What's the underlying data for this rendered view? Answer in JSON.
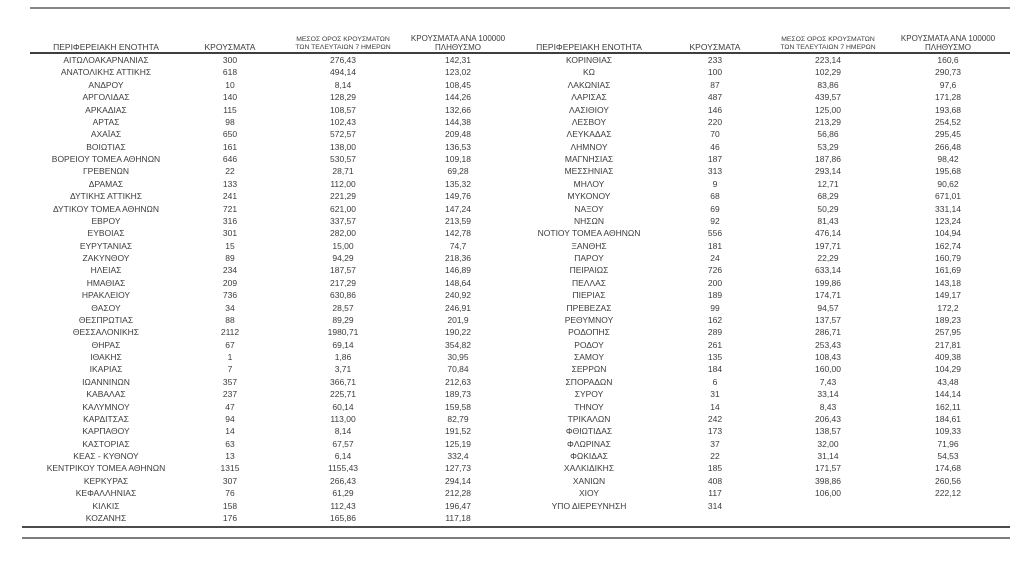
{
  "page": {
    "background_color": "#ffffff",
    "text_color": "#3c3c3c",
    "top_rule_color": "#868686",
    "header_rule_color": "#3f3f3f",
    "bottom_rule_color": "#7d7d7d"
  },
  "columns": {
    "region": "ΠΕΡΙΦΕΡΕΙΑΚΗ ΕΝΟΤΗΤΑ",
    "cases": "ΚΡΟΥΣΜΑΤΑ",
    "avg7_line1": "ΜΕΣΟΣ ΟΡΟΣ ΚΡΟΥΣΜΑΤΩΝ",
    "avg7_line2": "ΤΩΝ ΤΕΛΕΥΤΑΙΩΝ 7 ΗΜΕΡΩΝ",
    "per100k_line1": "ΚΡΟΥΣΜΑΤΑ ΑΝΑ 100000",
    "per100k_line2": "ΠΛΗΘΥΣΜΟ"
  },
  "left_table": {
    "rows": [
      [
        "ΑΙΤΩΛΟΑΚΑΡΝΑΝΙΑΣ",
        "300",
        "276,43",
        "142,31"
      ],
      [
        "ΑΝΑΤΟΛΙΚΗΣ ΑΤΤΙΚΗΣ",
        "618",
        "494,14",
        "123,02"
      ],
      [
        "ΑΝΔΡΟΥ",
        "10",
        "8,14",
        "108,45"
      ],
      [
        "ΑΡΓΟΛΙΔΑΣ",
        "140",
        "128,29",
        "144,26"
      ],
      [
        "ΑΡΚΑΔΙΑΣ",
        "115",
        "108,57",
        "132,66"
      ],
      [
        "ΑΡΤΑΣ",
        "98",
        "102,43",
        "144,38"
      ],
      [
        "ΑΧΑΪΑΣ",
        "650",
        "572,57",
        "209,48"
      ],
      [
        "ΒΟΙΩΤΙΑΣ",
        "161",
        "138,00",
        "136,53"
      ],
      [
        "ΒΟΡΕΙΟΥ ΤΟΜΕΑ ΑΘΗΝΩΝ",
        "646",
        "530,57",
        "109,18"
      ],
      [
        "ΓΡΕΒΕΝΩΝ",
        "22",
        "28,71",
        "69,28"
      ],
      [
        "ΔΡΑΜΑΣ",
        "133",
        "112,00",
        "135,32"
      ],
      [
        "ΔΥΤΙΚΗΣ ΑΤΤΙΚΗΣ",
        "241",
        "221,29",
        "149,76"
      ],
      [
        "ΔΥΤΙΚΟΥ ΤΟΜΕΑ ΑΘΗΝΩΝ",
        "721",
        "621,00",
        "147,24"
      ],
      [
        "ΕΒΡΟΥ",
        "316",
        "337,57",
        "213,59"
      ],
      [
        "ΕΥΒΟΙΑΣ",
        "301",
        "282,00",
        "142,78"
      ],
      [
        "ΕΥΡΥΤΑΝΙΑΣ",
        "15",
        "15,00",
        "74,7"
      ],
      [
        "ΖΑΚΥΝΘΟΥ",
        "89",
        "94,29",
        "218,36"
      ],
      [
        "ΗΛΕΙΑΣ",
        "234",
        "187,57",
        "146,89"
      ],
      [
        "ΗΜΑΘΙΑΣ",
        "209",
        "217,29",
        "148,64"
      ],
      [
        "ΗΡΑΚΛΕΙΟΥ",
        "736",
        "630,86",
        "240,92"
      ],
      [
        "ΘΑΣΟΥ",
        "34",
        "28,57",
        "246,91"
      ],
      [
        "ΘΕΣΠΡΩΤΙΑΣ",
        "88",
        "89,29",
        "201,9"
      ],
      [
        "ΘΕΣΣΑΛΟΝΙΚΗΣ",
        "2112",
        "1980,71",
        "190,22"
      ],
      [
        "ΘΗΡΑΣ",
        "67",
        "69,14",
        "354,82"
      ],
      [
        "ΙΘΑΚΗΣ",
        "1",
        "1,86",
        "30,95"
      ],
      [
        "ΙΚΑΡΙΑΣ",
        "7",
        "3,71",
        "70,84"
      ],
      [
        "ΙΩΑΝΝΙΝΩΝ",
        "357",
        "366,71",
        "212,63"
      ],
      [
        "ΚΑΒΑΛΑΣ",
        "237",
        "225,71",
        "189,73"
      ],
      [
        "ΚΑΛΥΜΝΟΥ",
        "47",
        "60,14",
        "159,58"
      ],
      [
        "ΚΑΡΔΙΤΣΑΣ",
        "94",
        "113,00",
        "82,79"
      ],
      [
        "ΚΑΡΠΑΘΟΥ",
        "14",
        "8,14",
        "191,52"
      ],
      [
        "ΚΑΣΤΟΡΙΑΣ",
        "63",
        "67,57",
        "125,19"
      ],
      [
        "ΚΕΑΣ - ΚΥΘΝΟΥ",
        "13",
        "6,14",
        "332,4"
      ],
      [
        "ΚΕΝΤΡΙΚΟΥ ΤΟΜΕΑ ΑΘΗΝΩΝ",
        "1315",
        "1155,43",
        "127,73"
      ],
      [
        "ΚΕΡΚΥΡΑΣ",
        "307",
        "266,43",
        "294,14"
      ],
      [
        "ΚΕΦΑΛΛΗΝΙΑΣ",
        "76",
        "61,29",
        "212,28"
      ],
      [
        "ΚΙΛΚΙΣ",
        "158",
        "112,43",
        "196,47"
      ],
      [
        "ΚΟΖΑΝΗΣ",
        "176",
        "165,86",
        "117,18"
      ]
    ]
  },
  "right_table": {
    "rows": [
      [
        "ΚΟΡΙΝΘΙΑΣ",
        "233",
        "223,14",
        "160,6"
      ],
      [
        "ΚΩ",
        "100",
        "102,29",
        "290,73"
      ],
      [
        "ΛΑΚΩΝΙΑΣ",
        "87",
        "83,86",
        "97,6"
      ],
      [
        "ΛΑΡΙΣΑΣ",
        "487",
        "439,57",
        "171,28"
      ],
      [
        "ΛΑΣΙΘΙΟΥ",
        "146",
        "125,00",
        "193,68"
      ],
      [
        "ΛΕΣΒΟΥ",
        "220",
        "213,29",
        "254,52"
      ],
      [
        "ΛΕΥΚΑΔΑΣ",
        "70",
        "56,86",
        "295,45"
      ],
      [
        "ΛΗΜΝΟΥ",
        "46",
        "53,29",
        "266,48"
      ],
      [
        "ΜΑΓΝΗΣΙΑΣ",
        "187",
        "187,86",
        "98,42"
      ],
      [
        "ΜΕΣΣΗΝΙΑΣ",
        "313",
        "293,14",
        "195,68"
      ],
      [
        "ΜΗΛΟΥ",
        "9",
        "12,71",
        "90,62"
      ],
      [
        "ΜΥΚΟΝΟΥ",
        "68",
        "68,29",
        "671,01"
      ],
      [
        "ΝΑΞΟΥ",
        "69",
        "50,29",
        "331,14"
      ],
      [
        "ΝΗΣΩΝ",
        "92",
        "81,43",
        "123,24"
      ],
      [
        "ΝΟΤΙΟΥ ΤΟΜΕΑ ΑΘΗΝΩΝ",
        "556",
        "476,14",
        "104,94"
      ],
      [
        "ΞΑΝΘΗΣ",
        "181",
        "197,71",
        "162,74"
      ],
      [
        "ΠΑΡΟΥ",
        "24",
        "22,29",
        "160,79"
      ],
      [
        "ΠΕΙΡΑΙΩΣ",
        "726",
        "633,14",
        "161,69"
      ],
      [
        "ΠΕΛΛΑΣ",
        "200",
        "199,86",
        "143,18"
      ],
      [
        "ΠΙΕΡΙΑΣ",
        "189",
        "174,71",
        "149,17"
      ],
      [
        "ΠΡΕΒΕΖΑΣ",
        "99",
        "94,57",
        "172,2"
      ],
      [
        "ΡΕΘΥΜΝΟΥ",
        "162",
        "137,57",
        "189,23"
      ],
      [
        "ΡΟΔΟΠΗΣ",
        "289",
        "286,71",
        "257,95"
      ],
      [
        "ΡΟΔΟΥ",
        "261",
        "253,43",
        "217,81"
      ],
      [
        "ΣΑΜΟΥ",
        "135",
        "108,43",
        "409,38"
      ],
      [
        "ΣΕΡΡΩΝ",
        "184",
        "160,00",
        "104,29"
      ],
      [
        "ΣΠΟΡΑΔΩΝ",
        "6",
        "7,43",
        "43,48"
      ],
      [
        "ΣΥΡΟΥ",
        "31",
        "33,14",
        "144,14"
      ],
      [
        "ΤΗΝΟΥ",
        "14",
        "8,43",
        "162,11"
      ],
      [
        "ΤΡΙΚΑΛΩΝ",
        "242",
        "206,43",
        "184,61"
      ],
      [
        "ΦΘΙΩΤΙΔΑΣ",
        "173",
        "138,57",
        "109,33"
      ],
      [
        "ΦΛΩΡΙΝΑΣ",
        "37",
        "32,00",
        "71,96"
      ],
      [
        "ΦΩΚΙΔΑΣ",
        "22",
        "31,14",
        "54,53"
      ],
      [
        "ΧΑΛΚΙΔΙΚΗΣ",
        "185",
        "171,57",
        "174,68"
      ],
      [
        "ΧΑΝΙΩΝ",
        "408",
        "398,86",
        "260,56"
      ],
      [
        "ΧΙΟΥ",
        "117",
        "106,00",
        "222,12"
      ],
      [
        "ΥΠΟ ΔΙΕΡΕΥΝΗΣΗ",
        "314",
        "",
        ""
      ]
    ]
  }
}
